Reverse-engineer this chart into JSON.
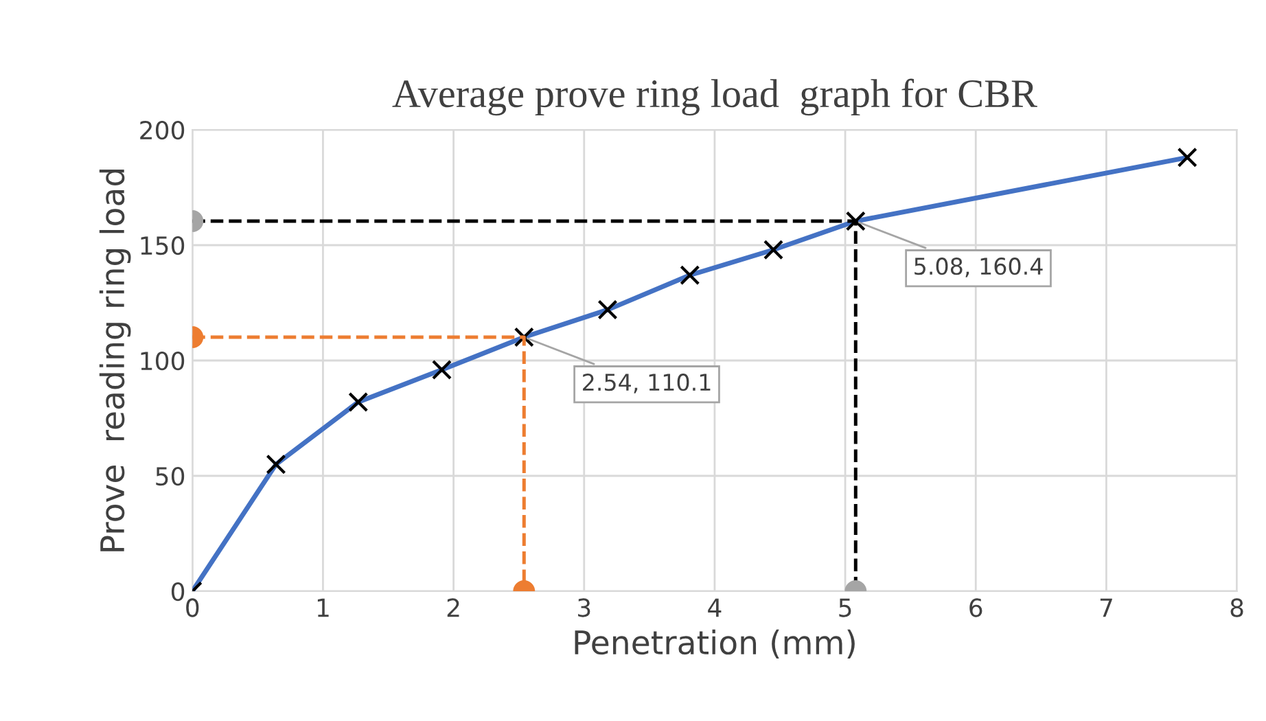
{
  "chart_data": {
    "type": "line",
    "title": "Average prove ring load  graph for CBR",
    "xlabel": "Penetration (mm)",
    "ylabel": "Prove  reading ring load",
    "xlim": [
      0,
      8
    ],
    "xticks": [
      0,
      1,
      2,
      3,
      4,
      5,
      6,
      7,
      8
    ],
    "ylim": [
      0,
      200
    ],
    "yticks": [
      0,
      50,
      100,
      150,
      200
    ],
    "grid": true,
    "legend": false,
    "series": [
      {
        "color": "#4472c4",
        "marker": "cross",
        "x": [
          0,
          0.64,
          1.27,
          1.91,
          2.54,
          3.18,
          3.81,
          4.45,
          5.08,
          7.62
        ],
        "values": [
          0,
          55,
          82,
          96,
          110.1,
          122,
          137,
          148,
          160.4,
          188
        ]
      },
      {
        "type": "line",
        "color": "#ed7d31",
        "line_style": "dashed",
        "marker": "none",
        "x": [
          0,
          2.54,
          2.54
        ],
        "values": [
          110.1,
          110.1,
          0
        ]
      },
      {
        "type": "scatter",
        "color": "#ed7d31",
        "marker": "circle",
        "x": [
          0,
          2.54
        ],
        "values": [
          110.1,
          0
        ]
      },
      {
        "type": "line",
        "color": "#000000",
        "line_style": "dashed",
        "marker": "none",
        "x": [
          0,
          5.08,
          5.08
        ],
        "values": [
          160.4,
          160.4,
          0
        ]
      },
      {
        "type": "scatter",
        "color": "#a5a5a5",
        "marker": "circle",
        "x": [
          0,
          5.08
        ],
        "values": [
          160.4,
          0
        ]
      }
    ],
    "annotations": [
      {
        "text": "2.54, 110.1",
        "x": 2.54,
        "y": 110.1
      },
      {
        "text": "5.08, 160.4",
        "x": 5.08,
        "y": 160.4
      }
    ]
  }
}
